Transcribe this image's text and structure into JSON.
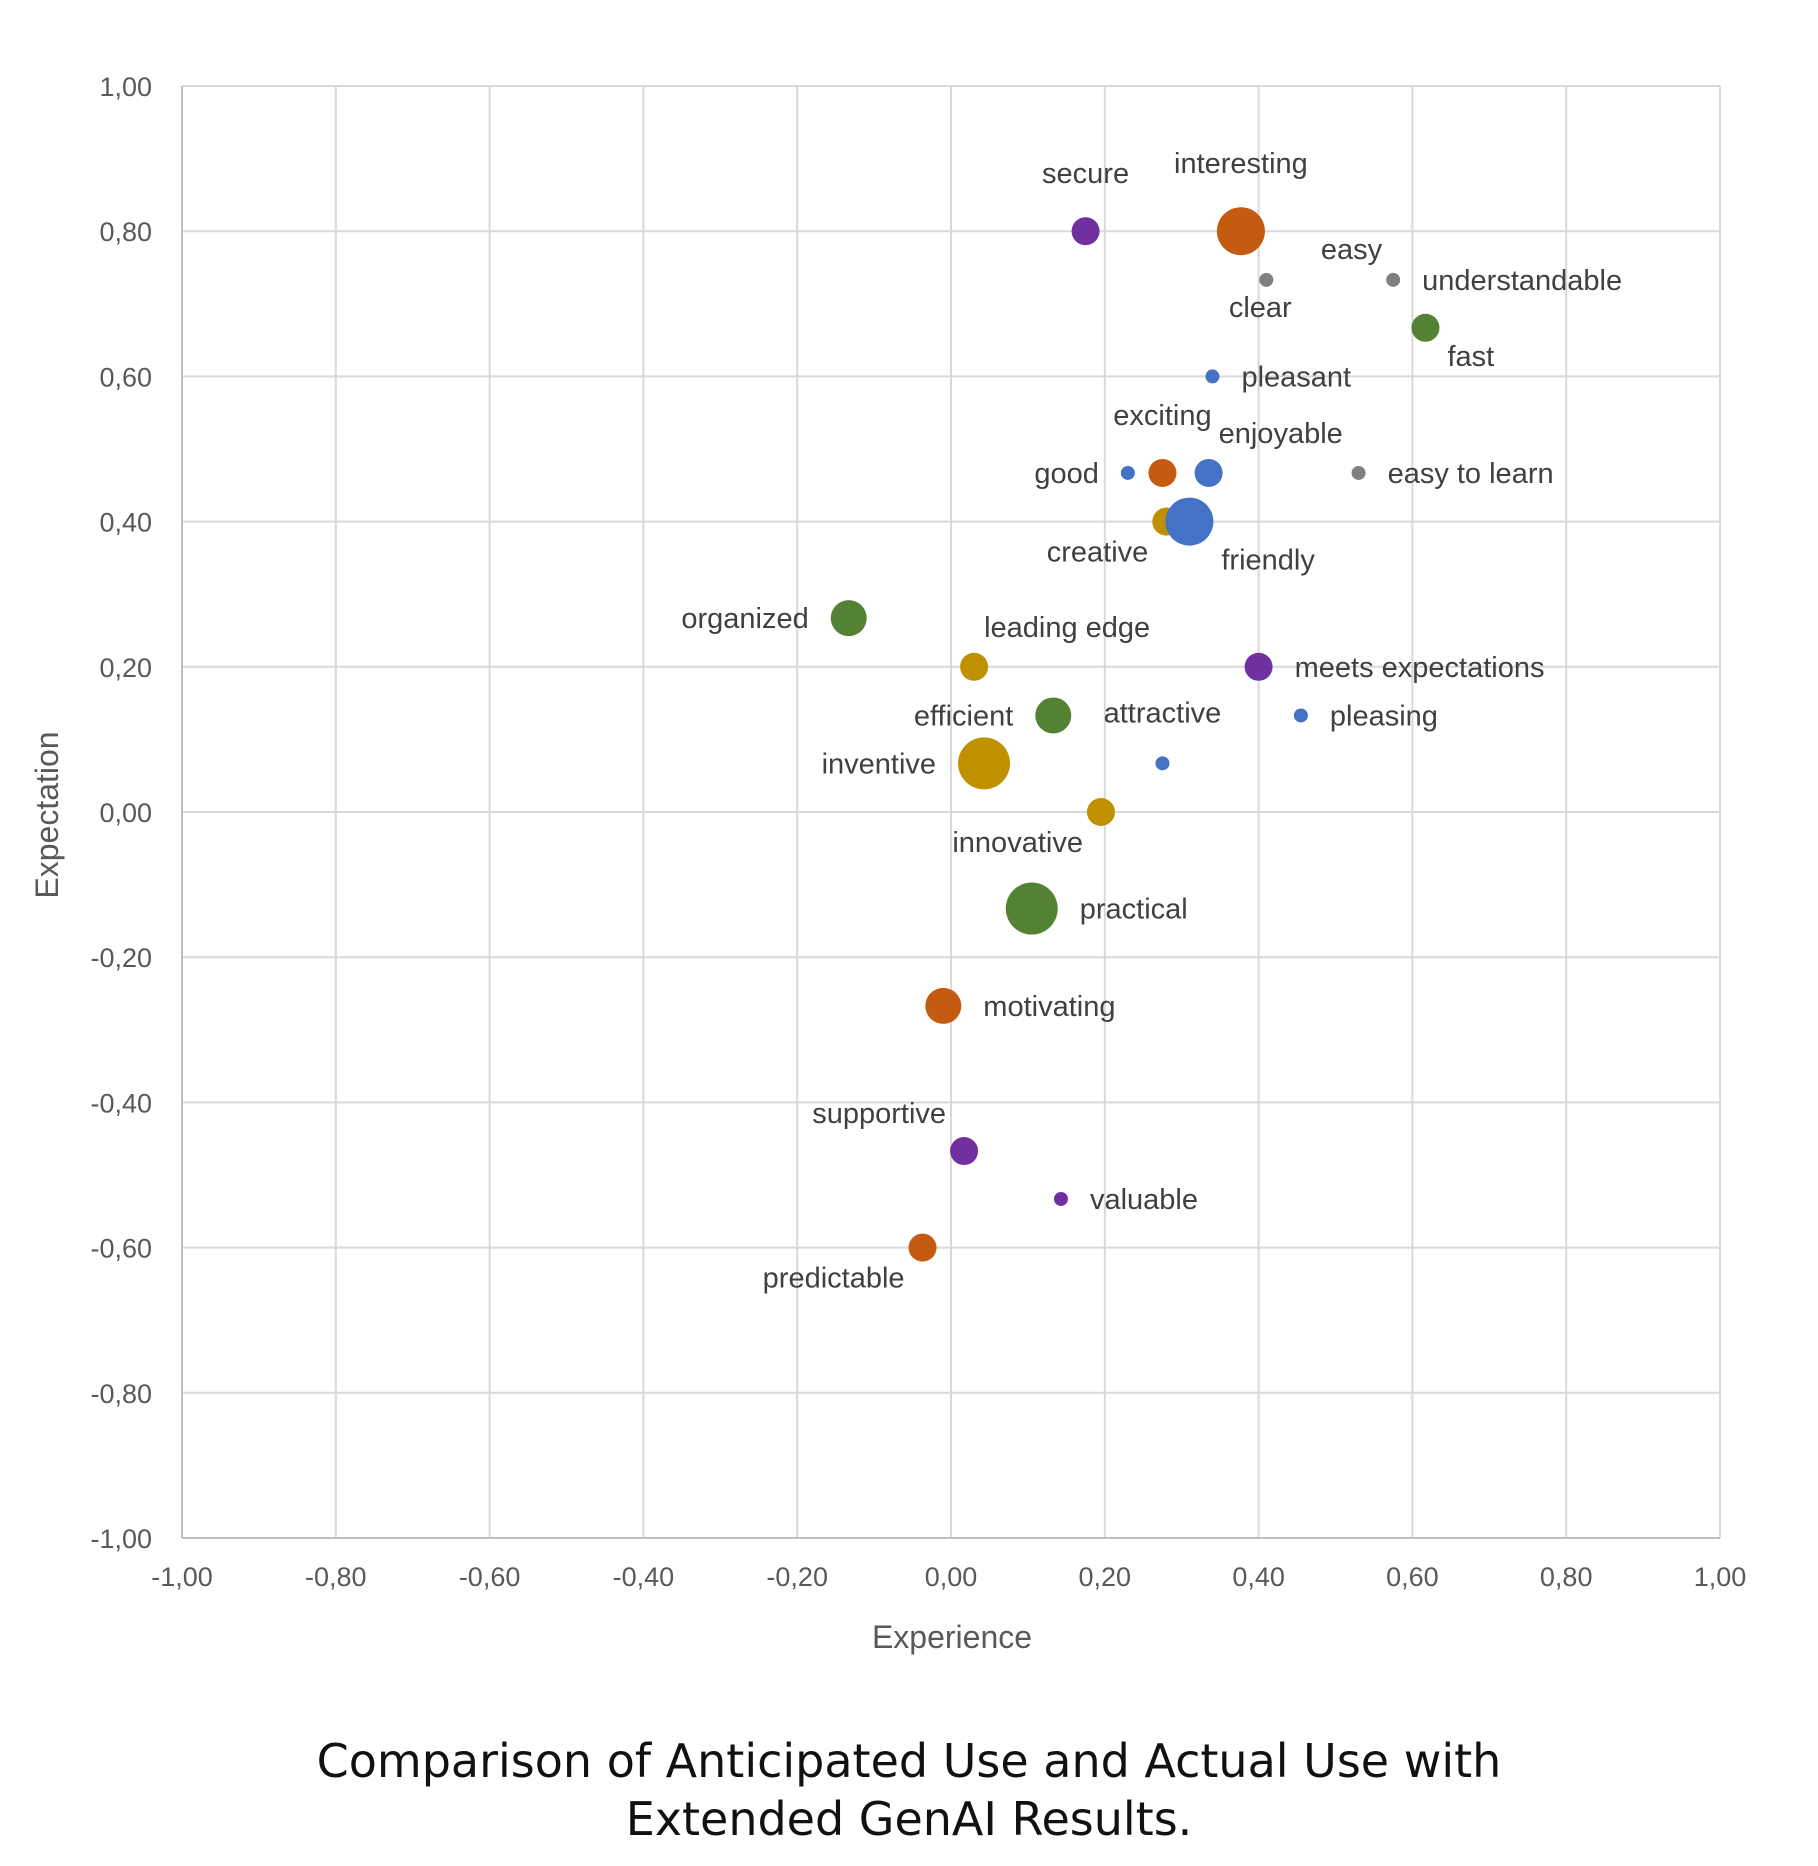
{
  "caption": {
    "line1": "Comparison of Anticipated Use and Actual Use with",
    "line2": "Extended GenAI Results."
  },
  "chart_data": {
    "type": "scatter",
    "title": "",
    "xlabel": "Experience",
    "ylabel": "Expectation",
    "xlim": [
      -1.0,
      1.0
    ],
    "ylim": [
      -1.0,
      1.0
    ],
    "grid": true,
    "x_ticks": [
      "-1,00",
      "-0,80",
      "-0,60",
      "-0,40",
      "-0,20",
      "0,00",
      "0,20",
      "0,40",
      "0,60",
      "0,80",
      "1,00"
    ],
    "y_ticks": [
      "1,00",
      "0,80",
      "0,60",
      "0,40",
      "0,20",
      "0,00",
      "-0,20",
      "-0,40",
      "-0,60",
      "-0,80",
      "-1,00"
    ],
    "colors": {
      "purple": "#7030a0",
      "orange": "#c55a11",
      "gray": "#808080",
      "green": "#548235",
      "blue": "#4472c4",
      "gold": "#bf9000"
    },
    "points": [
      {
        "label": "secure",
        "x": 0.175,
        "y": 0.8,
        "size": 2,
        "color": "purple",
        "label_pos": "above"
      },
      {
        "label": "interesting",
        "x": 0.377,
        "y": 0.8,
        "size": 4,
        "color": "orange",
        "label_pos": "above"
      },
      {
        "label": "clear",
        "x": 0.41,
        "y": 0.733,
        "size": 1,
        "color": "gray",
        "label_pos": "below"
      },
      {
        "label": "easy",
        "x": 0.575,
        "y": 0.733,
        "size": 1,
        "color": "gray",
        "label_pos": "aboveleft"
      },
      {
        "label": "understandable",
        "x": 0.575,
        "y": 0.733,
        "size": 0,
        "color": "gray",
        "label_pos": "right"
      },
      {
        "label": "fast",
        "x": 0.617,
        "y": 0.667,
        "size": 2,
        "color": "green",
        "label_pos": "belowright"
      },
      {
        "label": "pleasant",
        "x": 0.34,
        "y": 0.6,
        "size": 1,
        "color": "blue",
        "label_pos": "right"
      },
      {
        "label": "good",
        "x": 0.23,
        "y": 0.467,
        "size": 1,
        "color": "blue",
        "label_pos": "left"
      },
      {
        "label": "exciting",
        "x": 0.275,
        "y": 0.467,
        "size": 2,
        "color": "orange",
        "label_pos": "above"
      },
      {
        "label": "enjoyable",
        "x": 0.335,
        "y": 0.467,
        "size": 2,
        "color": "blue",
        "label_pos": "aboveright"
      },
      {
        "label": "easy to learn",
        "x": 0.53,
        "y": 0.467,
        "size": 1,
        "color": "gray",
        "label_pos": "right"
      },
      {
        "label": "creative",
        "x": 0.28,
        "y": 0.4,
        "size": 2,
        "color": "gold",
        "label_pos": "belowleft"
      },
      {
        "label": "friendly",
        "x": 0.31,
        "y": 0.4,
        "size": 4,
        "color": "blue",
        "label_pos": "belowright"
      },
      {
        "label": "organized",
        "x": -0.133,
        "y": 0.267,
        "size": 3,
        "color": "green",
        "label_pos": "left"
      },
      {
        "label": "leading edge",
        "x": 0.03,
        "y": 0.2,
        "size": 2,
        "color": "gold",
        "label_pos": "aboveright"
      },
      {
        "label": "meets expectations",
        "x": 0.4,
        "y": 0.2,
        "size": 2,
        "color": "purple",
        "label_pos": "right"
      },
      {
        "label": "efficient",
        "x": 0.133,
        "y": 0.133,
        "size": 3,
        "color": "green",
        "label_pos": "left"
      },
      {
        "label": "pleasing",
        "x": 0.455,
        "y": 0.133,
        "size": 1,
        "color": "blue",
        "label_pos": "right"
      },
      {
        "label": "attractive",
        "x": 0.275,
        "y": 0.067,
        "size": 1,
        "color": "blue",
        "label_pos": "above"
      },
      {
        "label": "inventive",
        "x": 0.043,
        "y": 0.067,
        "size": 5,
        "color": "gold",
        "label_pos": "left"
      },
      {
        "label": "innovative",
        "x": 0.195,
        "y": 0.0,
        "size": 2,
        "color": "gold",
        "label_pos": "belowleft"
      },
      {
        "label": "practical",
        "x": 0.105,
        "y": -0.133,
        "size": 5,
        "color": "green",
        "label_pos": "right"
      },
      {
        "label": "motivating",
        "x": -0.01,
        "y": -0.267,
        "size": 3,
        "color": "orange",
        "label_pos": "right"
      },
      {
        "label": "supportive",
        "x": 0.017,
        "y": -0.467,
        "size": 2,
        "color": "purple",
        "label_pos": "aboveleft"
      },
      {
        "label": "valuable",
        "x": 0.143,
        "y": -0.533,
        "size": 1,
        "color": "purple",
        "label_pos": "right"
      },
      {
        "label": "predictable",
        "x": -0.037,
        "y": -0.6,
        "size": 2,
        "color": "orange",
        "label_pos": "belowleft"
      }
    ]
  }
}
